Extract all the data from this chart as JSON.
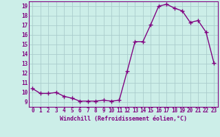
{
  "x": [
    0,
    1,
    2,
    3,
    4,
    5,
    6,
    7,
    8,
    9,
    10,
    11,
    12,
    13,
    14,
    15,
    16,
    17,
    18,
    19,
    20,
    21,
    22,
    23
  ],
  "y": [
    10.4,
    9.9,
    9.9,
    10.0,
    9.6,
    9.4,
    9.1,
    9.1,
    9.1,
    9.2,
    9.1,
    9.2,
    12.2,
    15.3,
    15.3,
    17.1,
    19.0,
    19.2,
    18.8,
    18.5,
    17.3,
    17.5,
    16.3,
    13.1
  ],
  "line_color": "#800080",
  "marker": "+",
  "marker_size": 4,
  "linewidth": 1.0,
  "xlabel": "Windchill (Refroidissement éolien,°C)",
  "xlim": [
    -0.5,
    23.5
  ],
  "ylim": [
    8.5,
    19.5
  ],
  "yticks": [
    9,
    10,
    11,
    12,
    13,
    14,
    15,
    16,
    17,
    18,
    19
  ],
  "xticks": [
    0,
    1,
    2,
    3,
    4,
    5,
    6,
    7,
    8,
    9,
    10,
    11,
    12,
    13,
    14,
    15,
    16,
    17,
    18,
    19,
    20,
    21,
    22,
    23
  ],
  "bg_color": "#cceee8",
  "grid_color": "#aacccc",
  "tick_color": "#800080",
  "xlabel_color": "#800080",
  "font_family": "monospace",
  "tick_fontsize": 5.5,
  "xlabel_fontsize": 6.0
}
